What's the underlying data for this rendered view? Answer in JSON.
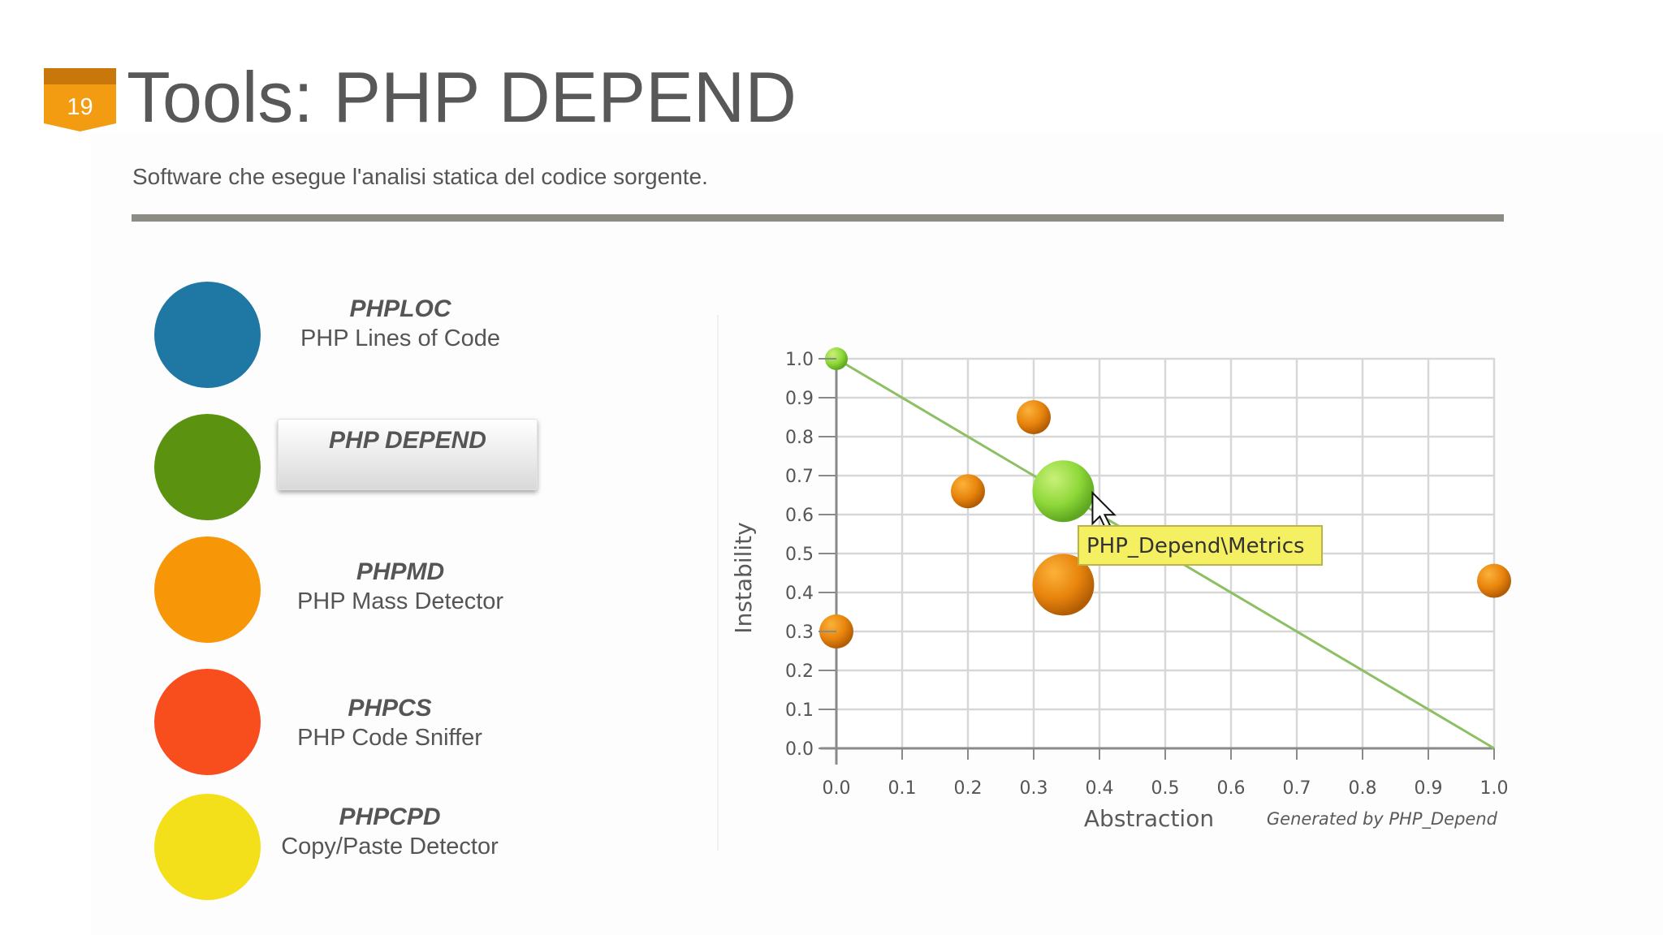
{
  "slide": {
    "number": "19",
    "title": "Tools: PHP DEPEND",
    "subtitle": "Software che esegue l'analisi statica del codice sorgente.",
    "badge_color": "#f39c12"
  },
  "tools": [
    {
      "name": "PHPLOC",
      "desc": "PHP Lines of Code",
      "color": "#1f78a4"
    },
    {
      "name": "PHP DEPEND",
      "desc": "",
      "color": "#5b920f",
      "active": true
    },
    {
      "name": "PHPMD",
      "desc": "PHP Mass Detector",
      "color": "#f79606"
    },
    {
      "name": "PHPCS",
      "desc": "PHP Code Sniffer",
      "color": "#f84e1e"
    },
    {
      "name": "PHPCPD",
      "desc": "Copy/Paste Detector",
      "color": "#f4e01a"
    }
  ],
  "chart_data": {
    "type": "scatter",
    "xlabel": "Abstraction",
    "ylabel": "Instability",
    "credit": "Generated by PHP_Depend",
    "xlim": [
      0,
      1
    ],
    "ylim": [
      0,
      1
    ],
    "grid": true,
    "xticks": [
      "0.0",
      "0.1",
      "0.2",
      "0.3",
      "0.4",
      "0.5",
      "0.6",
      "0.7",
      "0.8",
      "0.9",
      "1.0"
    ],
    "yticks": [
      "0.0",
      "0.1",
      "0.2",
      "0.3",
      "0.4",
      "0.5",
      "0.6",
      "0.7",
      "0.8",
      "0.9",
      "1.0"
    ],
    "main_sequence": {
      "from": [
        0,
        1
      ],
      "to": [
        1,
        0
      ],
      "color": "#8cc063"
    },
    "points": [
      {
        "x": 0.0,
        "y": 1.0,
        "size": "small",
        "color": "green"
      },
      {
        "x": 0.3,
        "y": 0.85,
        "size": "small",
        "color": "orange"
      },
      {
        "x": 0.2,
        "y": 0.66,
        "size": "small",
        "color": "orange"
      },
      {
        "x": 0.345,
        "y": 0.66,
        "size": "large",
        "color": "green"
      },
      {
        "x": 0.345,
        "y": 0.42,
        "size": "large",
        "color": "orange"
      },
      {
        "x": 0.0,
        "y": 0.3,
        "size": "small",
        "color": "orange"
      },
      {
        "x": 1.0,
        "y": 0.43,
        "size": "small",
        "color": "orange"
      }
    ],
    "tooltip": "PHP_Depend\\Metrics"
  }
}
